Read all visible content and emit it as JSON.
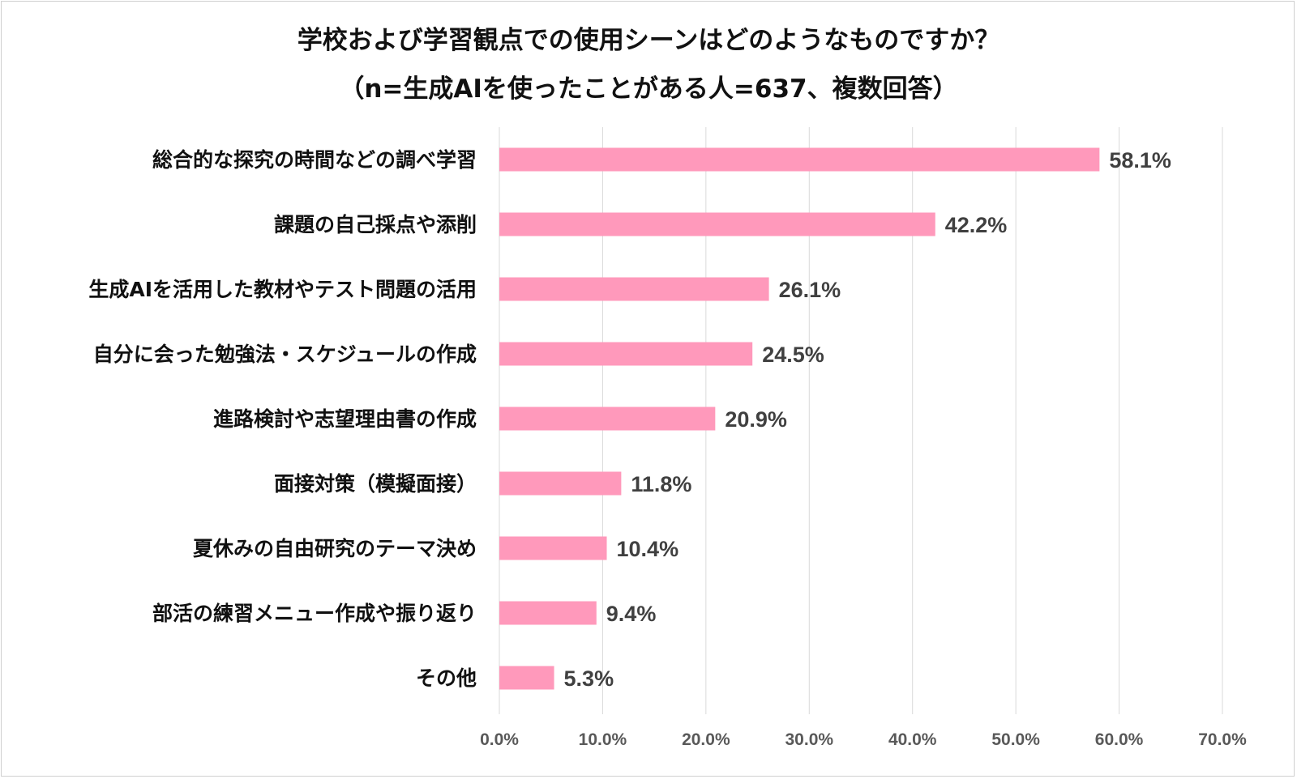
{
  "chart_data": {
    "type": "bar",
    "orientation": "horizontal",
    "title": "学校および学習観点での使用シーンはどのようなものですか？",
    "subtitle": "（n=生成AIを使ったことがある人=637、複数回答）",
    "categories": [
      "総合的な探究の時間などの調べ学習",
      "課題の自己採点や添削",
      "生成AIを活用した教材やテスト問題の活用",
      "自分に会った勉強法・スケジュールの作成",
      "進路検討や志望理由書の作成",
      "面接対策（模擬面接）",
      "夏休みの自由研究のテーマ決め",
      "部活の練習メニュー作成や振り返り",
      "その他"
    ],
    "values": [
      58.1,
      42.2,
      26.1,
      24.5,
      20.9,
      11.8,
      10.4,
      9.4,
      5.3
    ],
    "value_labels": [
      "58.1%",
      "42.2%",
      "26.1%",
      "24.5%",
      "20.9%",
      "11.8%",
      "10.4%",
      "9.4%",
      "5.3%"
    ],
    "xlim": [
      0,
      70
    ],
    "x_ticks": [
      0,
      10,
      20,
      30,
      40,
      50,
      60,
      70
    ],
    "x_tick_labels": [
      "0.0%",
      "10.0%",
      "20.0%",
      "30.0%",
      "40.0%",
      "50.0%",
      "60.0%",
      "70.0%"
    ],
    "grid": true,
    "legend": "none",
    "colors": {
      "bar": "#ff99bb",
      "grid": "#d9d9d9",
      "value_text": "#404040",
      "tick_text": "#595959"
    }
  }
}
